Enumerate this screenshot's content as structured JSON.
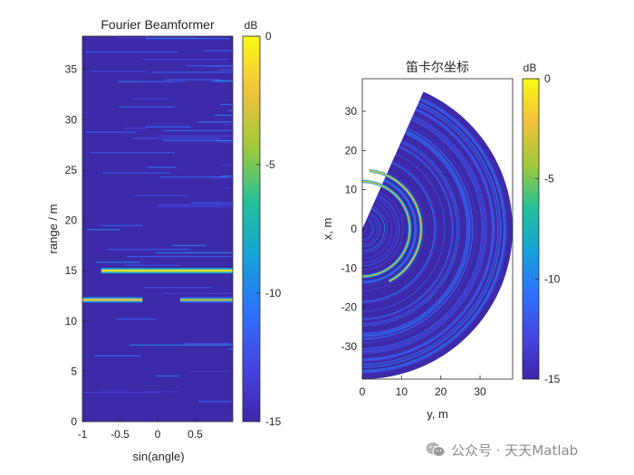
{
  "chart_data": [
    {
      "type": "heatmap",
      "title": "Fourier Beamformer",
      "xlabel": "sin(angle)",
      "ylabel": "range / m",
      "xlim": [
        -1,
        1
      ],
      "ylim": [
        0,
        38.3
      ],
      "x_ticks": [
        -1,
        -0.5,
        0,
        0.5
      ],
      "x_tick_labels": [
        "-1",
        "-0.5",
        "0",
        "0.5"
      ],
      "y_ticks": [
        0,
        5,
        10,
        15,
        20,
        25,
        30,
        35
      ],
      "y_tick_labels": [
        "0",
        "5",
        "10",
        "15",
        "20",
        "25",
        "30",
        "35"
      ],
      "colorbar": {
        "label": "dB",
        "range": [
          -15,
          0
        ],
        "ticks": [
          0,
          -5,
          -10,
          -15
        ],
        "tick_labels": [
          "0",
          "-5",
          "-10",
          "-15"
        ]
      },
      "strong_returns": [
        {
          "range": 15.0,
          "sin_angle_from": -0.75,
          "sin_angle_to": 1.0,
          "peak_db": -1
        },
        {
          "range": 12.1,
          "sin_angle_from": -1.0,
          "sin_angle_to": -0.2,
          "peak_db": -2
        },
        {
          "range": 12.1,
          "sin_angle_from": 0.3,
          "sin_angle_to": 1.0,
          "peak_db": -4
        }
      ],
      "background_db": -14
    },
    {
      "type": "heatmap",
      "title": "笛卡尔坐标",
      "xlabel": "y, m",
      "ylabel": "x, m",
      "xlim": [
        0,
        38.3
      ],
      "ylim": [
        -38.3,
        38.3
      ],
      "x_ticks": [
        0,
        10,
        20,
        30
      ],
      "x_tick_labels": [
        "0",
        "10",
        "20",
        "30"
      ],
      "y_ticks": [
        30,
        20,
        10,
        0,
        -10,
        -20,
        -30
      ],
      "y_tick_labels": [
        "30",
        "20",
        "10",
        "0",
        "-10",
        "-20",
        "-30"
      ],
      "colorbar": {
        "label": "dB",
        "range": [
          -15,
          0
        ],
        "ticks": [
          0,
          -5,
          -10,
          -15
        ],
        "tick_labels": [
          "0",
          "-5",
          "-10",
          "-15"
        ]
      },
      "sector": {
        "max_range": 38.3,
        "angle_min_deg": -90,
        "angle_max_deg": 66
      },
      "strong_rings": [
        {
          "radius": 15.0,
          "angle_min_deg": -63,
          "angle_max_deg": 83,
          "peak_db": -2
        },
        {
          "radius": 12.1,
          "angle_min_deg": -90,
          "angle_max_deg": 90,
          "peak_db": -3
        }
      ],
      "background_db": -14
    }
  ],
  "colors": {
    "background": "#3d2aa8",
    "parula": [
      "#3e26a8",
      "#4545e2",
      "#2d73fc",
      "#14a3d6",
      "#24c09a",
      "#9fc93b",
      "#f4c13c",
      "#f9fb15"
    ]
  },
  "watermark": {
    "text": "公众号 · 天天Matlab",
    "icon": "wechat-icon"
  }
}
